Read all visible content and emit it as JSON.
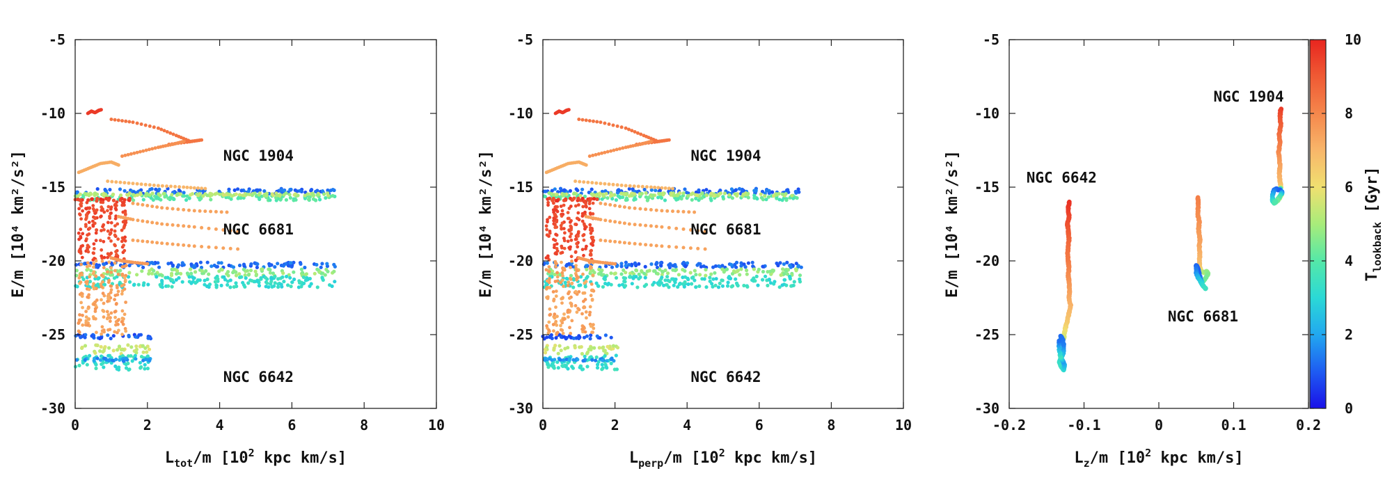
{
  "colors": {
    "colormap": [
      "#1a10e8",
      "#1e5cf2",
      "#22a8f0",
      "#2bd9d6",
      "#55e8a8",
      "#a8ec7a",
      "#f0e070",
      "#f8b66a",
      "#f5874c",
      "#ef5a34",
      "#e8251f"
    ],
    "frame": "#222222"
  },
  "colorbar": {
    "label_main": "T",
    "label_sub": "lookback",
    "label_unit": " [Gyr]",
    "ticks": [
      "0",
      "2",
      "4",
      "6",
      "8",
      "10"
    ],
    "range": [
      0,
      10
    ]
  },
  "chart_data": [
    {
      "type": "scatter",
      "xlabel_main": "L",
      "xlabel_sub": "tot",
      "xlabel_rest": "/m [10",
      "xlabel_sup": "2",
      "xlabel_tail": " kpc km/s]",
      "ylabel": "E/m [10⁴ km²/s²]",
      "xlim": [
        0,
        10
      ],
      "ylim": [
        -30,
        -5
      ],
      "xticks": [
        "0",
        "2",
        "4",
        "6",
        "8",
        "10"
      ],
      "yticks": [
        "-5",
        "-10",
        "-15",
        "-20",
        "-25",
        "-30"
      ],
      "annotations": [
        {
          "text": "NGC 1904",
          "x": 4.1,
          "y": -13.2
        },
        {
          "text": "NGC 6681",
          "x": 4.1,
          "y": -18.2
        },
        {
          "text": "NGC 6642",
          "x": 4.1,
          "y": -28.2
        }
      ],
      "series": [
        {
          "kind": "band",
          "t": 1.2,
          "x": [
            0.0,
            7.2
          ],
          "y": [
            -15.45,
            -15.1
          ]
        },
        {
          "kind": "band",
          "t": 4.0,
          "x": [
            0.0,
            7.2
          ],
          "y": [
            -15.9,
            -15.55
          ]
        },
        {
          "kind": "band",
          "t": 5.2,
          "x": [
            0.0,
            7.2
          ],
          "y": [
            -15.6,
            -15.4
          ]
        },
        {
          "kind": "band",
          "t": 9.5,
          "x": [
            0.0,
            1.6
          ],
          "y": [
            -15.95,
            -15.75
          ]
        },
        {
          "kind": "band",
          "t": 1.2,
          "x": [
            0.0,
            7.2
          ],
          "y": [
            -20.45,
            -20.1
          ]
        },
        {
          "kind": "band",
          "t": 4.8,
          "x": [
            0.0,
            7.2
          ],
          "y": [
            -21.0,
            -20.55
          ]
        },
        {
          "kind": "band",
          "t": 3.2,
          "x": [
            0.0,
            7.2
          ],
          "y": [
            -21.8,
            -21.05
          ]
        },
        {
          "kind": "band",
          "t": 1.0,
          "x": [
            0.0,
            2.1
          ],
          "y": [
            -25.3,
            -25.0
          ]
        },
        {
          "kind": "band",
          "t": 5.5,
          "x": [
            0.0,
            2.1
          ],
          "y": [
            -26.3,
            -25.7
          ]
        },
        {
          "kind": "band",
          "t": 3.3,
          "x": [
            0.0,
            2.1
          ],
          "y": [
            -27.4,
            -26.4
          ]
        },
        {
          "kind": "band",
          "t": 1.8,
          "x": [
            0.0,
            2.1
          ],
          "y": [
            -26.8,
            -26.6
          ]
        },
        {
          "kind": "cloud",
          "t": 9.3,
          "x": [
            0.0,
            1.6
          ],
          "y": [
            -20.0,
            -16.0
          ]
        },
        {
          "kind": "cloud",
          "t": 7.4,
          "x": [
            0.0,
            1.6
          ],
          "y": [
            -25.0,
            -20.0
          ]
        },
        {
          "kind": "curve",
          "t": 9.6,
          "x": [
            0.35,
            0.45,
            0.55,
            0.65,
            0.72
          ],
          "y": [
            -10.0,
            -9.85,
            -9.95,
            -9.8,
            -9.75
          ]
        },
        {
          "kind": "curve",
          "t": 8.4,
          "x": [
            1.0,
            1.6,
            2.3,
            2.8,
            3.2,
            3.5,
            3.1,
            2.6
          ],
          "y": [
            -10.4,
            -10.6,
            -11.0,
            -11.5,
            -11.9,
            -11.8,
            -11.95,
            -12.1
          ]
        },
        {
          "kind": "curve",
          "t": 7.8,
          "x": [
            1.3,
            1.8,
            2.3,
            2.7,
            3.0
          ],
          "y": [
            -12.9,
            -12.6,
            -12.3,
            -12.1,
            -11.9
          ]
        },
        {
          "kind": "curve",
          "t": 7.2,
          "x": [
            0.1,
            0.4,
            0.7,
            1.0,
            1.2
          ],
          "y": [
            -14.0,
            -13.7,
            -13.4,
            -13.3,
            -13.5
          ]
        },
        {
          "kind": "curve",
          "t": 7.0,
          "x": [
            0.9,
            1.6,
            2.3,
            3.0,
            3.6
          ],
          "y": [
            -14.6,
            -14.75,
            -14.9,
            -15.0,
            -15.1
          ]
        },
        {
          "kind": "curve",
          "t": 7.4,
          "x": [
            1.6,
            2.4,
            3.3,
            4.2
          ],
          "y": [
            -16.1,
            -16.4,
            -16.6,
            -16.7
          ]
        },
        {
          "kind": "curve",
          "t": 7.4,
          "x": [
            1.2,
            1.6,
            2.4,
            3.3,
            4.5
          ],
          "y": [
            -17.0,
            -17.2,
            -17.5,
            -17.7,
            -18.0
          ]
        },
        {
          "kind": "curve",
          "t": 7.4,
          "x": [
            1.6,
            2.4,
            3.3,
            4.5
          ],
          "y": [
            -18.6,
            -18.8,
            -19.0,
            -19.2
          ]
        },
        {
          "kind": "curve",
          "t": 7.6,
          "x": [
            1.0,
            1.3,
            1.6,
            2.0
          ],
          "y": [
            -19.8,
            -20.0,
            -20.1,
            -20.2
          ]
        }
      ]
    },
    {
      "type": "scatter",
      "xlabel_main": "L",
      "xlabel_sub": "perp",
      "xlabel_rest": "/m [10",
      "xlabel_sup": "2",
      "xlabel_tail": " kpc km/s]",
      "ylabel": "E/m [10⁴ km²/s²]",
      "xlim": [
        0,
        10
      ],
      "ylim": [
        -30,
        -5
      ],
      "xticks": [
        "0",
        "2",
        "4",
        "6",
        "8",
        "10"
      ],
      "yticks": [
        "-5",
        "-10",
        "-15",
        "-20",
        "-25",
        "-30"
      ],
      "annotations": [
        {
          "text": "NGC 1904",
          "x": 4.1,
          "y": -13.2
        },
        {
          "text": "NGC 6681",
          "x": 4.1,
          "y": -18.2
        },
        {
          "text": "NGC 6642",
          "x": 4.1,
          "y": -28.2
        }
      ],
      "series": [
        {
          "kind": "band",
          "t": 1.2,
          "x": [
            0.0,
            7.2
          ],
          "y": [
            -15.45,
            -15.1
          ]
        },
        {
          "kind": "band",
          "t": 4.0,
          "x": [
            0.0,
            7.2
          ],
          "y": [
            -15.9,
            -15.55
          ]
        },
        {
          "kind": "band",
          "t": 5.2,
          "x": [
            0.0,
            7.2
          ],
          "y": [
            -15.6,
            -15.4
          ]
        },
        {
          "kind": "band",
          "t": 9.5,
          "x": [
            0.0,
            1.6
          ],
          "y": [
            -15.95,
            -15.75
          ]
        },
        {
          "kind": "band",
          "t": 1.2,
          "x": [
            0.0,
            7.2
          ],
          "y": [
            -20.45,
            -20.1
          ]
        },
        {
          "kind": "band",
          "t": 4.8,
          "x": [
            0.0,
            7.2
          ],
          "y": [
            -21.0,
            -20.55
          ]
        },
        {
          "kind": "band",
          "t": 3.2,
          "x": [
            0.0,
            7.2
          ],
          "y": [
            -21.8,
            -21.05
          ]
        },
        {
          "kind": "band",
          "t": 1.0,
          "x": [
            0.0,
            2.1
          ],
          "y": [
            -25.3,
            -25.0
          ]
        },
        {
          "kind": "band",
          "t": 5.5,
          "x": [
            0.0,
            2.1
          ],
          "y": [
            -26.3,
            -25.7
          ]
        },
        {
          "kind": "band",
          "t": 3.3,
          "x": [
            0.0,
            2.1
          ],
          "y": [
            -27.4,
            -26.4
          ]
        },
        {
          "kind": "band",
          "t": 1.8,
          "x": [
            0.0,
            2.1
          ],
          "y": [
            -26.8,
            -26.6
          ]
        },
        {
          "kind": "cloud",
          "t": 9.3,
          "x": [
            0.0,
            1.6
          ],
          "y": [
            -20.0,
            -16.0
          ]
        },
        {
          "kind": "cloud",
          "t": 7.4,
          "x": [
            0.0,
            1.6
          ],
          "y": [
            -25.0,
            -20.0
          ]
        },
        {
          "kind": "curve",
          "t": 9.6,
          "x": [
            0.35,
            0.45,
            0.55,
            0.65,
            0.72
          ],
          "y": [
            -10.0,
            -9.85,
            -9.95,
            -9.8,
            -9.75
          ]
        },
        {
          "kind": "curve",
          "t": 8.4,
          "x": [
            1.0,
            1.6,
            2.3,
            2.8,
            3.2,
            3.5,
            3.1,
            2.6
          ],
          "y": [
            -10.4,
            -10.6,
            -11.0,
            -11.5,
            -11.9,
            -11.8,
            -11.95,
            -12.1
          ]
        },
        {
          "kind": "curve",
          "t": 7.8,
          "x": [
            1.3,
            1.8,
            2.3,
            2.7,
            3.0
          ],
          "y": [
            -12.9,
            -12.6,
            -12.3,
            -12.1,
            -11.9
          ]
        },
        {
          "kind": "curve",
          "t": 7.2,
          "x": [
            0.1,
            0.4,
            0.7,
            1.0,
            1.2
          ],
          "y": [
            -14.0,
            -13.7,
            -13.4,
            -13.3,
            -13.5
          ]
        },
        {
          "kind": "curve",
          "t": 7.0,
          "x": [
            0.9,
            1.6,
            2.3,
            3.0,
            3.6
          ],
          "y": [
            -14.6,
            -14.75,
            -14.9,
            -15.0,
            -15.1
          ]
        },
        {
          "kind": "curve",
          "t": 7.4,
          "x": [
            1.6,
            2.4,
            3.3,
            4.2
          ],
          "y": [
            -16.1,
            -16.4,
            -16.6,
            -16.7
          ]
        },
        {
          "kind": "curve",
          "t": 7.4,
          "x": [
            1.2,
            1.6,
            2.4,
            3.3,
            4.5
          ],
          "y": [
            -17.0,
            -17.2,
            -17.5,
            -17.7,
            -18.0
          ]
        },
        {
          "kind": "curve",
          "t": 7.4,
          "x": [
            1.6,
            2.4,
            3.3,
            4.5
          ],
          "y": [
            -18.6,
            -18.8,
            -19.0,
            -19.2
          ]
        },
        {
          "kind": "curve",
          "t": 7.6,
          "x": [
            1.0,
            1.3,
            1.6,
            2.0
          ],
          "y": [
            -19.8,
            -20.0,
            -20.1,
            -20.2
          ]
        }
      ]
    },
    {
      "type": "scatter",
      "xlabel_main": "L",
      "xlabel_sub": "z",
      "xlabel_rest": "/m [10",
      "xlabel_sup": "2",
      "xlabel_tail": " kpc km/s]",
      "ylabel": "E/m [10⁴ km²/s²]",
      "xlim": [
        -0.2,
        0.2
      ],
      "ylim": [
        -30,
        -5
      ],
      "xticks": [
        "-0.2",
        "-0.1",
        "0",
        "0.1",
        "0.2"
      ],
      "yticks": [
        "-5",
        "-10",
        "-15",
        "-20",
        "-25",
        "-30"
      ],
      "annotations": [
        {
          "text": "NGC 1904",
          "x": 0.073,
          "y": -9.2
        },
        {
          "text": "NGC 6642",
          "x": -0.177,
          "y": -14.7
        },
        {
          "text": "NGC 6681",
          "x": 0.012,
          "y": -24.1
        }
      ],
      "series": [
        {
          "kind": "track",
          "name": "NGC 6642",
          "x": [
            -0.12,
            -0.121,
            -0.12,
            -0.122,
            -0.121,
            -0.12,
            -0.121,
            -0.122,
            -0.121,
            -0.12,
            -0.121,
            -0.12,
            -0.119,
            -0.12,
            -0.118,
            -0.12,
            -0.122,
            -0.124,
            -0.126,
            -0.127,
            -0.13,
            -0.131,
            -0.128,
            -0.127,
            -0.128,
            -0.131,
            -0.133,
            -0.13,
            -0.127,
            -0.126,
            -0.128,
            -0.132,
            -0.134
          ],
          "y": [
            -16.0,
            -16.5,
            -17.0,
            -17.5,
            -18.0,
            -18.5,
            -19.0,
            -19.5,
            -20.0,
            -20.5,
            -21.0,
            -21.5,
            -22.0,
            -22.5,
            -23.0,
            -23.5,
            -24.0,
            -24.4,
            -24.8,
            -25.2,
            -25.6,
            -25.1,
            -25.4,
            -25.9,
            -26.3,
            -26.6,
            -26.9,
            -27.2,
            -27.4,
            -27.1,
            -26.8,
            -26.5,
            -25.3
          ],
          "t": [
            9.8,
            9.6,
            9.4,
            9.2,
            9.0,
            8.8,
            8.6,
            8.4,
            8.3,
            8.1,
            7.9,
            7.7,
            7.5,
            7.3,
            7.1,
            6.9,
            6.7,
            6.4,
            6.0,
            5.6,
            5.2,
            1.2,
            1.3,
            1.5,
            2.2,
            2.9,
            3.3,
            3.4,
            3.2,
            2.4,
            1.8,
            3.6,
            1.0
          ]
        },
        {
          "kind": "track",
          "name": "NGC 6681",
          "x": [
            0.052,
            0.053,
            0.052,
            0.054,
            0.053,
            0.055,
            0.054,
            0.055,
            0.054,
            0.055,
            0.057,
            0.06,
            0.064,
            0.066,
            0.062,
            0.058,
            0.056,
            0.054,
            0.052,
            0.05,
            0.05,
            0.052,
            0.055,
            0.058,
            0.061,
            0.063
          ],
          "y": [
            -15.7,
            -16.2,
            -16.8,
            -17.4,
            -17.9,
            -18.5,
            -19.1,
            -19.6,
            -20.1,
            -20.5,
            -20.7,
            -20.8,
            -20.7,
            -20.9,
            -21.2,
            -21.5,
            -21.3,
            -20.9,
            -20.5,
            -20.3,
            -20.8,
            -21.1,
            -21.3,
            -21.6,
            -21.8,
            -21.9
          ],
          "t": [
            8.2,
            8.1,
            7.9,
            7.8,
            7.6,
            7.5,
            7.3,
            7.1,
            6.9,
            6.6,
            5.8,
            5.2,
            4.8,
            4.6,
            4.4,
            4.2,
            1.6,
            1.2,
            1.0,
            1.1,
            1.6,
            2.2,
            2.6,
            3.0,
            3.3,
            3.5
          ]
        },
        {
          "kind": "track",
          "name": "NGC 1904",
          "x": [
            0.163,
            0.162,
            0.163,
            0.161,
            0.162,
            0.16,
            0.161,
            0.162,
            0.161,
            0.162,
            0.163,
            0.162,
            0.16,
            0.157,
            0.154,
            0.152,
            0.152,
            0.154,
            0.157,
            0.161,
            0.164,
            0.165,
            0.162,
            0.158,
            0.155
          ],
          "y": [
            -9.7,
            -10.2,
            -10.8,
            -11.4,
            -12.0,
            -12.6,
            -13.1,
            -13.6,
            -14.1,
            -14.6,
            -15.0,
            -15.2,
            -15.2,
            -15.1,
            -15.2,
            -15.5,
            -15.9,
            -16.1,
            -16.0,
            -15.8,
            -15.5,
            -15.3,
            -15.6,
            -15.9,
            -16.0
          ],
          "t": [
            9.6,
            9.2,
            8.9,
            8.6,
            8.3,
            8.0,
            7.7,
            7.4,
            7.2,
            7.0,
            6.6,
            1.2,
            1.0,
            1.1,
            1.3,
            2.0,
            3.0,
            3.6,
            4.2,
            4.8,
            5.2,
            1.3,
            3.3,
            4.4,
            3.8
          ]
        }
      ]
    }
  ]
}
